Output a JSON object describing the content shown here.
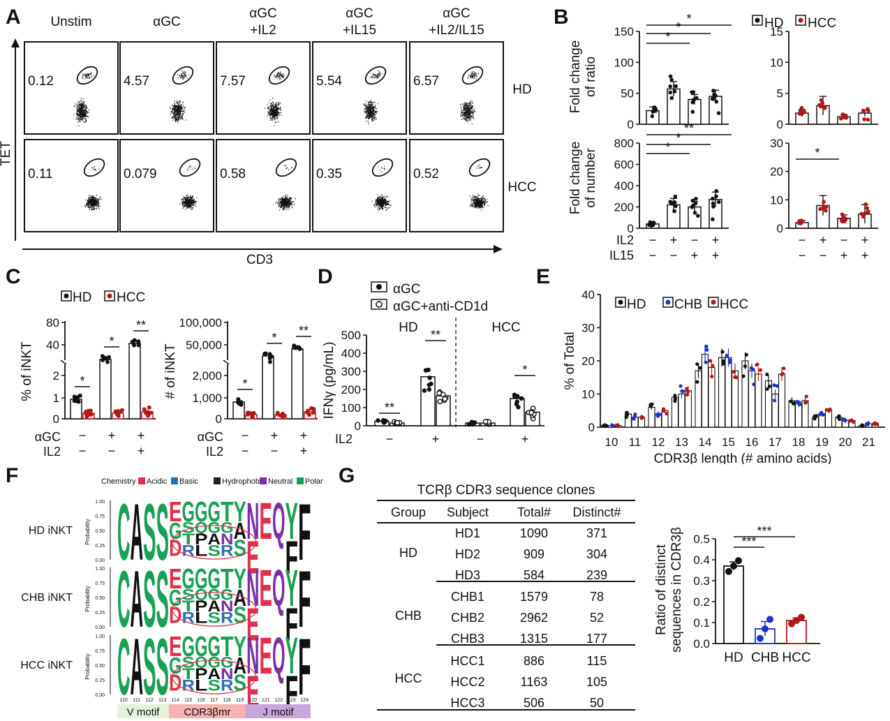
{
  "panels": {
    "A": "A",
    "B": "B",
    "C": "C",
    "D": "D",
    "E": "E",
    "F": "F",
    "G": "G"
  },
  "panelA": {
    "columns": [
      "Unstim",
      "αGC",
      "αGC\n+IL2",
      "αGC\n+IL15",
      "αGC\n+IL2/IL15"
    ],
    "col_lines": [
      [
        "Unstim"
      ],
      [
        "αGC"
      ],
      [
        "αGC",
        "+IL2"
      ],
      [
        "αGC",
        "+IL15"
      ],
      [
        "αGC",
        "+IL2/IL15"
      ]
    ],
    "rows": [
      "HD",
      "HCC"
    ],
    "values_HD": [
      "0.12",
      "4.57",
      "7.57",
      "5.54",
      "6.57"
    ],
    "values_HCC": [
      "0.11",
      "0.079",
      "0.58",
      "0.35",
      "0.52"
    ],
    "ylabel": "TET",
    "xlabel": "CD3"
  },
  "panelB": {
    "legend": [
      "HD",
      "HCC"
    ],
    "ylabel_top": [
      "Fold change",
      "of ratio"
    ],
    "ylabel_bottom": [
      "Fold change",
      "of number"
    ],
    "row_labels": [
      "IL2",
      "IL15"
    ],
    "il2": [
      "−",
      "+",
      "−",
      "+"
    ],
    "il15": [
      "−",
      "−",
      "+",
      "+"
    ],
    "sig_top_hd": [
      "*",
      "*",
      "*"
    ],
    "sig_bottom_hd": [
      "*",
      "*",
      "**"
    ],
    "sig_bottom_hcc": [
      "*"
    ],
    "ticks_top_hd": [
      "0",
      "50",
      "100",
      "150"
    ],
    "ticks_top_hcc": [
      "0",
      "5",
      "10",
      "15"
    ],
    "ticks_bot_hd": [
      "0",
      "200",
      "400",
      "600",
      "800"
    ],
    "ticks_bot_hcc": [
      "0",
      "10",
      "20",
      "30"
    ]
  },
  "panelC": {
    "legend": [
      "HD",
      "HCC"
    ],
    "ylabel_left": "% of iNKT",
    "ylabel_right": "# of iNKT",
    "ticks_left": [
      "0",
      "1",
      "2",
      "40",
      "80"
    ],
    "ticks_right": [
      "0",
      "1,000",
      "2,000",
      "50,000",
      "100,000"
    ],
    "row_labels": [
      "αGC",
      "IL2"
    ],
    "agc": [
      "−",
      "+",
      "+"
    ],
    "il2": [
      "−",
      "−",
      "+"
    ],
    "sig_left": [
      "*",
      "*",
      "**"
    ],
    "sig_right": [
      "*",
      "*",
      "**"
    ]
  },
  "panelD": {
    "legend": [
      "αGC",
      "αGC+anti-CD1d"
    ],
    "groups": [
      "HD",
      "HCC"
    ],
    "ylabel": "IFNγ (pg/mL)",
    "ticks": [
      "0",
      "100",
      "200",
      "300",
      "400",
      "500"
    ],
    "row_label": "IL2",
    "il2": [
      "−",
      "+",
      "−",
      "+"
    ],
    "sig": [
      "**",
      "**",
      "*"
    ]
  },
  "panelE": {
    "legend": [
      "HD",
      "CHB",
      "HCC"
    ],
    "ylabel": "% of Total",
    "xlabel": "CDR3β length (# amino acids)",
    "ticks": [
      "0",
      "10",
      "20",
      "30",
      "40"
    ]
  },
  "chart_data": [
    {
      "type": "bar",
      "title": "",
      "xlabel": "CDR3β length (# amino acids)",
      "ylabel": "% of Total",
      "ylim": [
        0,
        40
      ],
      "categories": [
        "10",
        "11",
        "12",
        "13",
        "14",
        "15",
        "16",
        "17",
        "18",
        "19",
        "20",
        "21"
      ],
      "series": [
        {
          "name": "HD",
          "values": [
            0.5,
            4,
            6,
            9,
            17,
            21,
            20,
            14,
            8,
            3,
            3,
            0.5
          ]
        },
        {
          "name": "CHB",
          "values": [
            0.5,
            3,
            4,
            10,
            22,
            21,
            17,
            10,
            7,
            4,
            2,
            1
          ]
        },
        {
          "name": "HCC",
          "values": [
            0.5,
            3,
            5,
            11,
            18,
            17,
            16,
            16,
            8,
            5,
            2,
            1
          ]
        }
      ]
    },
    {
      "type": "bar",
      "title": "",
      "ylabel": "Ratio of distinct sequences in CDR3β",
      "ylim": [
        0,
        0.5
      ],
      "categories": [
        "HD",
        "CHB",
        "HCC"
      ],
      "values": [
        0.37,
        0.07,
        0.11
      ]
    },
    {
      "type": "bar",
      "ylabel": "IFNγ (pg/mL)",
      "ylim": [
        0,
        500
      ],
      "categories": [
        "HD IL2−",
        "HD IL2+",
        "HCC IL2−",
        "HCC IL2+"
      ],
      "series": [
        {
          "name": "αGC",
          "values": [
            25,
            270,
            15,
            150
          ]
        },
        {
          "name": "αGC+anti-CD1d",
          "values": [
            15,
            165,
            15,
            75
          ]
        }
      ]
    }
  ],
  "panelF": {
    "chem_label": "Chemistry",
    "chem": [
      {
        "name": "Acidic",
        "color": "#e0314b"
      },
      {
        "name": "Basic",
        "color": "#2d6db3"
      },
      {
        "name": "Hydrophobic",
        "color": "#222222"
      },
      {
        "name": "Neutral",
        "color": "#7b2fa5"
      },
      {
        "name": "Polar",
        "color": "#1aa052"
      }
    ],
    "rows": [
      "HD iNKT",
      "CHB iNKT",
      "HCC iNKT"
    ],
    "prob_label": "Probability",
    "prob_ticks": [
      "1.00",
      "0.75",
      "0.50",
      "0.25",
      "0.00"
    ],
    "positions": [
      "110",
      "111",
      "112",
      "113",
      "114",
      "115",
      "116",
      "117",
      "118",
      "119",
      "120",
      "121",
      "122",
      "123",
      "124"
    ],
    "motifs": [
      "V motif",
      "CDR3βmr",
      "J motif"
    ]
  },
  "panelG": {
    "title": "TCRβ CDR3 sequence clones",
    "headers": [
      "Group",
      "Subject",
      "Total#",
      "Distinct#"
    ],
    "groups": [
      "HD",
      "CHB",
      "HCC"
    ],
    "rows": [
      [
        "HD1",
        "1090",
        "371"
      ],
      [
        "HD2",
        "909",
        "304"
      ],
      [
        "HD3",
        "584",
        "239"
      ],
      [
        "CHB1",
        "1579",
        "78"
      ],
      [
        "CHB2",
        "2962",
        "52"
      ],
      [
        "CHB3",
        "1315",
        "177"
      ],
      [
        "HCC1",
        "886",
        "115"
      ],
      [
        "HCC2",
        "1163",
        "105"
      ],
      [
        "HCC3",
        "506",
        "50"
      ]
    ],
    "ratio_ylabel": [
      "Ratio of distinct",
      "sequences in CDR3β"
    ],
    "ratio_ticks": [
      "0.0",
      "0.1",
      "0.2",
      "0.3",
      "0.4",
      "0.5"
    ],
    "ratio_cats": [
      "HD",
      "CHB",
      "HCC"
    ],
    "sig": [
      "***",
      "***"
    ]
  },
  "colors": {
    "hd": "#111111",
    "chb": "#1a33cc",
    "hcc": "#b01818"
  }
}
